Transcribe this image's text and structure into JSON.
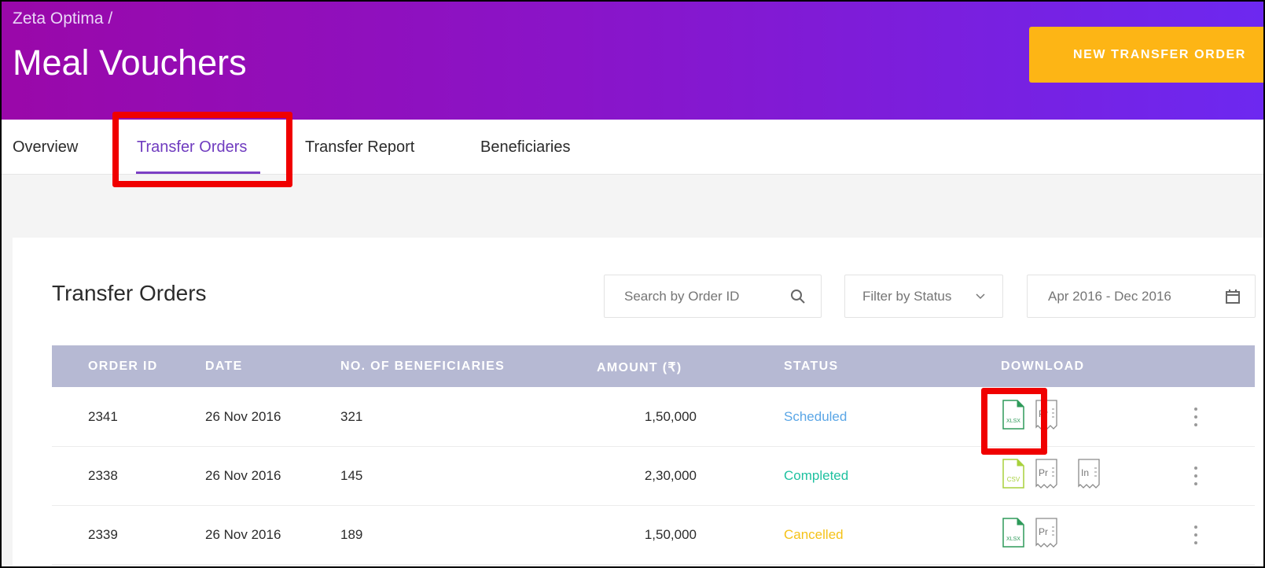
{
  "header": {
    "breadcrumb": "Zeta Optima /",
    "title": "Meal Vouchers",
    "new_order_label": "NEW TRANSFER ORDER"
  },
  "tabs": [
    {
      "label": "Overview",
      "active": false
    },
    {
      "label": "Transfer Orders",
      "active": true
    },
    {
      "label": "Transfer Report",
      "active": false
    },
    {
      "label": "Beneficiaries",
      "active": false
    }
  ],
  "orders": {
    "title": "Transfer Orders",
    "search_placeholder": "Search by Order ID",
    "filter_label": "Filter by Status",
    "date_range": "Apr 2016 - Dec 2016",
    "columns": [
      "ORDER ID",
      "DATE",
      "NO. OF BENEFICIARIES",
      "AMOUNT (₹)",
      "STATUS",
      "DOWNLOAD"
    ],
    "rows": [
      {
        "id": "2341",
        "date": "26 Nov 2016",
        "beneficiaries": "321",
        "amount": "1,50,000",
        "status": "Scheduled",
        "files": [
          "XLSX",
          "Pr"
        ]
      },
      {
        "id": "2338",
        "date": "26 Nov 2016",
        "beneficiaries": "145",
        "amount": "2,30,000",
        "status": "Completed",
        "files": [
          "CSV",
          "Pr",
          "In"
        ]
      },
      {
        "id": "2339",
        "date": "26 Nov 2016",
        "beneficiaries": "189",
        "amount": "1,50,000",
        "status": "Cancelled",
        "files": [
          "XLSX",
          "Pr"
        ]
      }
    ]
  },
  "colors": {
    "accent": "#7b3fc4",
    "button": "#fdb515",
    "highlight": "#f00000",
    "scheduled": "#5aa6e6",
    "completed": "#1fc1a0",
    "cancelled": "#f5c218",
    "xlsx": "#2e9a5a",
    "csv": "#a8d13c"
  },
  "icons": [
    "search-icon",
    "chevron-down-icon",
    "calendar-icon",
    "xlsx-file-icon",
    "csv-file-icon",
    "pr-receipt-icon",
    "in-receipt-icon",
    "more-vertical-icon"
  ]
}
